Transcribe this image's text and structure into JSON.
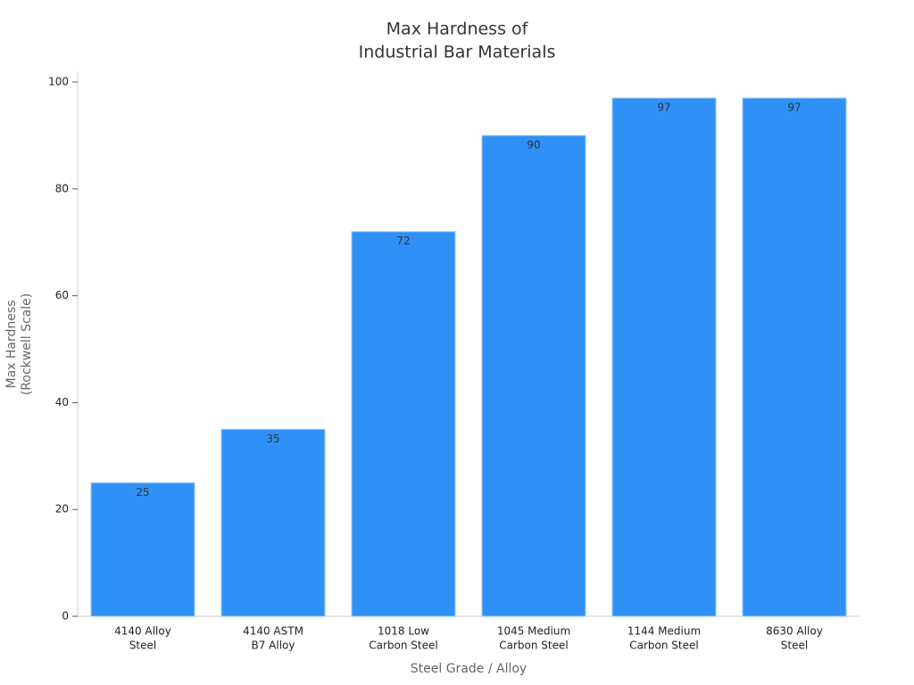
{
  "chart_data": {
    "type": "bar",
    "title": [
      "Max Hardness of",
      "Industrial Bar Materials"
    ],
    "x_label": "Steel Grade / Alloy",
    "y_label": [
      "Max Hardness",
      "(Rockwell Scale)"
    ],
    "categories": [
      [
        "4140 Alloy",
        "Steel"
      ],
      [
        "4140 ASTM",
        "B7 Alloy"
      ],
      [
        "1018 Low",
        "Carbon Steel"
      ],
      [
        "1045 Medium",
        "Carbon Steel"
      ],
      [
        "1144 Medium",
        "Carbon Steel"
      ],
      [
        "8630 Alloy",
        "Steel"
      ]
    ],
    "values": [
      25,
      35,
      72,
      90,
      97,
      97
    ],
    "color": "#2f91f6",
    "ylim": [
      0,
      100
    ],
    "yticks": [
      0,
      20,
      40,
      60,
      80,
      100
    ],
    "grid": false
  }
}
